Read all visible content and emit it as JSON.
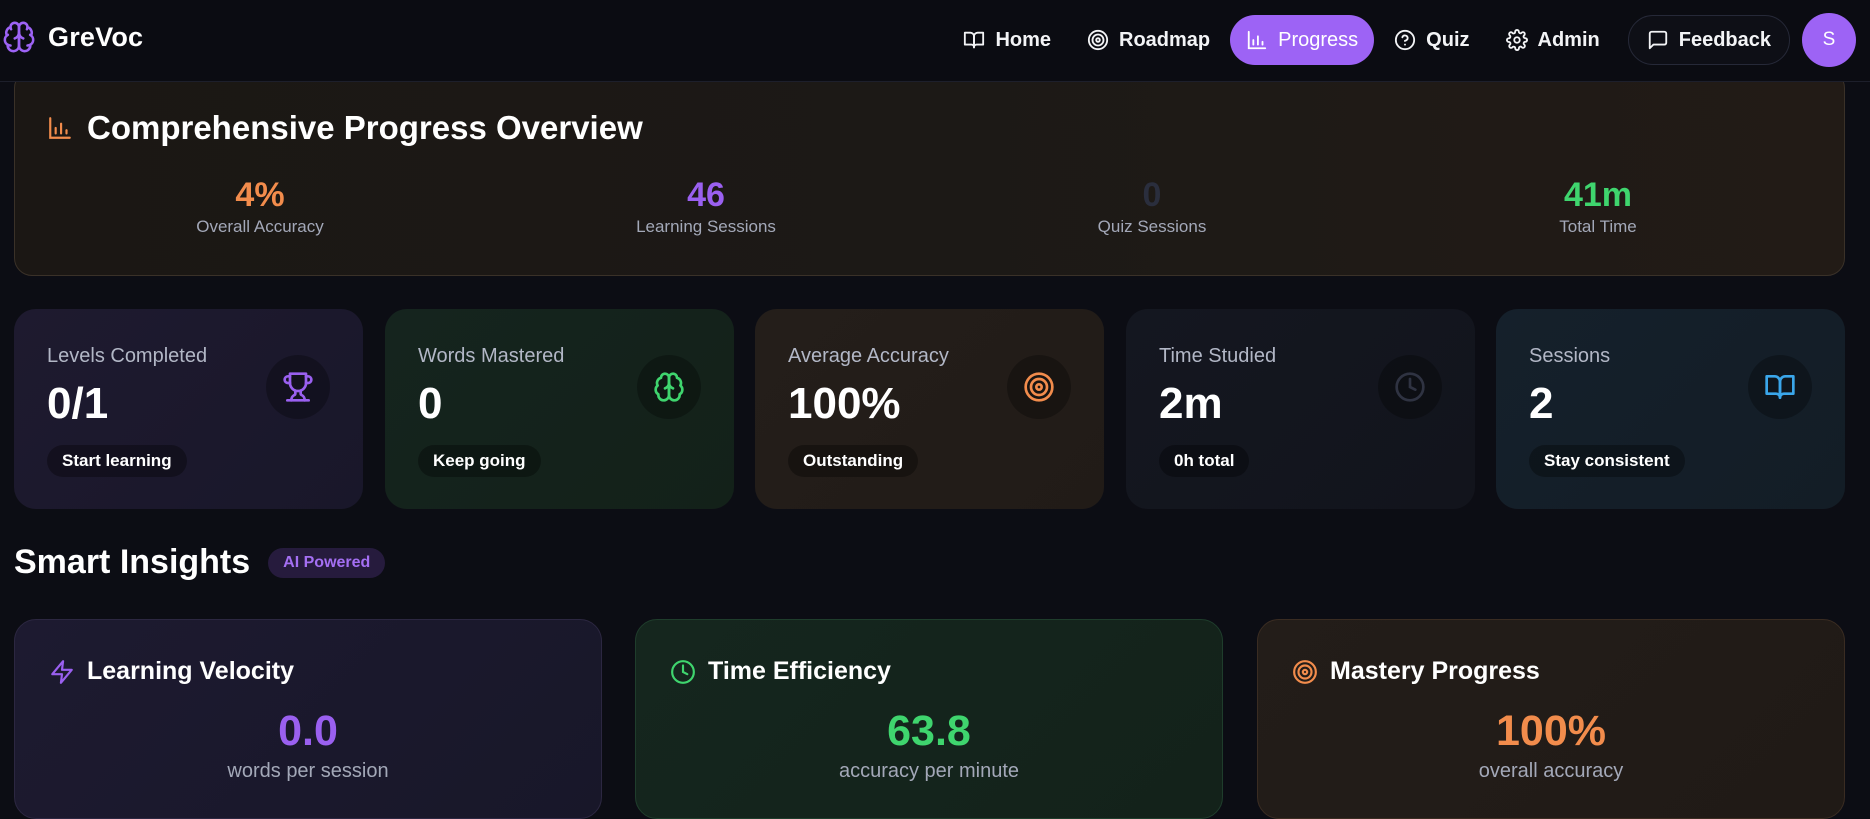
{
  "header": {
    "brand": "GreVoc",
    "nav": [
      {
        "label": "Home",
        "icon": "book-open-icon",
        "active": false
      },
      {
        "label": "Roadmap",
        "icon": "target-icon",
        "active": false
      },
      {
        "label": "Progress",
        "icon": "bar-chart-icon",
        "active": true
      },
      {
        "label": "Quiz",
        "icon": "help-circle-icon",
        "active": false
      },
      {
        "label": "Admin",
        "icon": "gear-icon",
        "active": false
      }
    ],
    "feedback": {
      "label": "Feedback",
      "icon": "message-square-icon"
    },
    "avatar": "S"
  },
  "overview": {
    "title": "Comprehensive Progress Overview",
    "icon": "bar-chart-icon",
    "stats": [
      {
        "value": "4%",
        "label": "Overall Accuracy",
        "color": "#f28c4c"
      },
      {
        "value": "46",
        "label": "Learning Sessions",
        "color": "#9a60f0"
      },
      {
        "value": "0",
        "label": "Quiz Sessions",
        "color": "#2a2e3d"
      },
      {
        "value": "41m",
        "label": "Total Time",
        "color": "#3fd56e"
      }
    ]
  },
  "cards": [
    {
      "label": "Levels Completed",
      "value": "0/1",
      "pill": "Start learning",
      "icon": "trophy-icon",
      "accent": "#9a60f0"
    },
    {
      "label": "Words Mastered",
      "value": "0",
      "pill": "Keep going",
      "icon": "brain-icon",
      "accent": "#3fd56e"
    },
    {
      "label": "Average Accuracy",
      "value": "100%",
      "pill": "Outstanding",
      "icon": "target-icon",
      "accent": "#f28c4c"
    },
    {
      "label": "Time Studied",
      "value": "2m",
      "pill": "0h total",
      "icon": "clock-icon",
      "accent": "#2f3342"
    },
    {
      "label": "Sessions",
      "value": "2",
      "pill": "Stay consistent",
      "icon": "book-open-icon",
      "accent": "#3aa6ea"
    }
  ],
  "insights": {
    "title": "Smart Insights",
    "badge": "AI Powered",
    "items": [
      {
        "title": "Learning Velocity",
        "value": "0.0",
        "subtitle": "words per session",
        "icon": "zap-icon",
        "color": "#9a60f0"
      },
      {
        "title": "Time Efficiency",
        "value": "63.8",
        "subtitle": "accuracy per minute",
        "icon": "clock-icon",
        "color": "#3fd56e"
      },
      {
        "title": "Mastery Progress",
        "value": "100%",
        "subtitle": "overall accuracy",
        "icon": "target-icon",
        "color": "#f28c4c"
      }
    ]
  }
}
